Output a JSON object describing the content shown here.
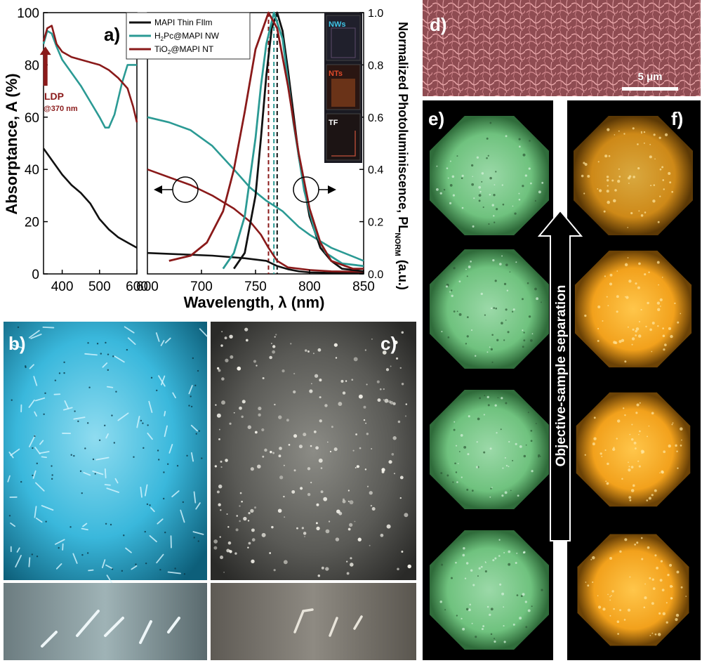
{
  "chart_data": {
    "type": "line",
    "panel_label": "a)",
    "left_axis": {
      "ylabel": "Absorptance, A (%)",
      "ylim": [
        0,
        100
      ],
      "yticks": [
        0,
        20,
        40,
        60,
        80,
        100
      ]
    },
    "right_axis": {
      "ylabel_main": "Normalized Photoluminiscence, PL",
      "ylabel_sub": "NORM",
      "ylabel_unit": " (a.u.)",
      "ylim": [
        0,
        1.0
      ],
      "yticks": [
        "0.0",
        "0.2",
        "0.4",
        "0.6",
        "0.8",
        "1.0"
      ]
    },
    "xlabel": "Wavelength, λ (nm)",
    "left_panel_xlim": [
      350,
      600
    ],
    "left_panel_xticks": [
      400,
      500,
      600
    ],
    "right_panel_xlim": [
      650,
      850
    ],
    "right_panel_xticks": [
      700,
      750,
      800,
      850
    ],
    "tick_labels_extra": {
      "left_600": "600",
      "right_600": "600"
    },
    "legend": [
      {
        "label_pre": "MAPI Thin FIlm",
        "label_sub": "",
        "label_post": "",
        "color": "#111111"
      },
      {
        "label_pre": "H",
        "label_sub": "2",
        "label_post": "Pc@MAPI NW",
        "color": "#2b9a94"
      },
      {
        "label_pre": "TiO",
        "label_sub": "2",
        "label_post": "@MAPI NT",
        "color": "#8a1a1a"
      }
    ],
    "annotation": {
      "line1": "LDP",
      "line2": "@370 nm",
      "x": 372,
      "y_from": 72,
      "y_to": 86
    },
    "colors": {
      "tf": "#111111",
      "nw": "#2b9a94",
      "nt": "#8a1a1a"
    },
    "absorptance_left": [
      {
        "name": "MAPI Thin FIlm",
        "x": [
          350,
          375,
          400,
          425,
          450,
          475,
          500,
          525,
          550,
          575,
          600
        ],
        "y": [
          48,
          43,
          38,
          34,
          31,
          27,
          21,
          17,
          14,
          12,
          10
        ]
      },
      {
        "name": "H2Pc@MAPI NW",
        "x": [
          350,
          360,
          372,
          385,
          400,
          425,
          450,
          475,
          500,
          515,
          525,
          540,
          560,
          575,
          585,
          600
        ],
        "y": [
          88,
          93,
          92,
          87,
          82,
          77,
          72,
          66,
          60,
          56,
          56,
          61,
          73,
          80,
          80,
          80
        ]
      },
      {
        "name": "TiO2@MAPI NT",
        "x": [
          350,
          360,
          372,
          385,
          400,
          425,
          450,
          475,
          500,
          525,
          550,
          575,
          590,
          600
        ],
        "y": [
          89,
          94,
          95,
          88,
          85,
          83,
          82,
          81,
          80,
          78,
          75,
          71,
          64,
          58
        ]
      }
    ],
    "absorptance_right": [
      {
        "name": "MAPI Thin FIlm",
        "x": [
          650,
          680,
          710,
          740,
          760,
          770,
          780,
          790,
          800,
          820,
          850
        ],
        "y": [
          8,
          7.5,
          7,
          6,
          5,
          3,
          1.8,
          1,
          0.6,
          0.4,
          0.3
        ]
      },
      {
        "name": "H2Pc@MAPI NW",
        "x": [
          650,
          670,
          690,
          710,
          730,
          745,
          760,
          775,
          790,
          800,
          820,
          850
        ],
        "y": [
          60,
          58,
          55,
          49,
          40,
          33,
          28,
          24,
          18,
          15,
          10,
          5
        ]
      },
      {
        "name": "TiO2@MAPI NT",
        "x": [
          650,
          670,
          690,
          710,
          730,
          745,
          755,
          762,
          770,
          780,
          800,
          820,
          850
        ],
        "y": [
          40,
          37,
          34,
          30,
          25,
          20,
          15,
          10,
          5,
          2.5,
          1.5,
          1.0,
          0.8
        ]
      }
    ],
    "photoluminescence": [
      {
        "name": "MAPI Thin FIlm",
        "peak": 770,
        "x": [
          730,
          740,
          750,
          755,
          760,
          765,
          770,
          775,
          780,
          790,
          800,
          810,
          820,
          830,
          850
        ],
        "y": [
          0.02,
          0.08,
          0.3,
          0.52,
          0.76,
          0.94,
          1.0,
          0.93,
          0.78,
          0.45,
          0.22,
          0.1,
          0.05,
          0.02,
          0.01
        ]
      },
      {
        "name": "H2Pc@MAPI NW",
        "peak": 767,
        "x": [
          720,
          730,
          740,
          750,
          755,
          760,
          767,
          775,
          785,
          795,
          805,
          815,
          830,
          850
        ],
        "y": [
          0.02,
          0.08,
          0.22,
          0.52,
          0.72,
          0.88,
          1.0,
          0.9,
          0.58,
          0.32,
          0.16,
          0.08,
          0.04,
          0.03
        ]
      },
      {
        "name": "TiO2@MAPI NT",
        "peak": 762,
        "x": [
          670,
          690,
          705,
          720,
          730,
          740,
          750,
          762,
          770,
          780,
          790,
          800,
          810,
          820,
          840,
          850
        ],
        "y": [
          0.05,
          0.07,
          0.12,
          0.24,
          0.4,
          0.62,
          0.86,
          1.0,
          0.94,
          0.72,
          0.46,
          0.25,
          0.12,
          0.05,
          0.02,
          0.02
        ]
      }
    ],
    "dashed_peak_lines": [
      {
        "x": 762,
        "color": "#8a1a1a"
      },
      {
        "x": 767,
        "color": "#2b9a94"
      },
      {
        "x": 770,
        "color": "#111111"
      }
    ],
    "inset_labels": [
      "NWs",
      "NTs",
      "TF"
    ],
    "inset_label_colors": [
      "#3fc3e6",
      "#e04a2a",
      "#ffffff"
    ]
  },
  "panels": {
    "d": {
      "label": "d)",
      "scalebar": "5 μm"
    },
    "b": {
      "label": "b)"
    },
    "c": {
      "label": "c)"
    },
    "e": {
      "label": "e)"
    },
    "f": {
      "label": "f)"
    },
    "arrow_text": "Objective-sample separation"
  }
}
